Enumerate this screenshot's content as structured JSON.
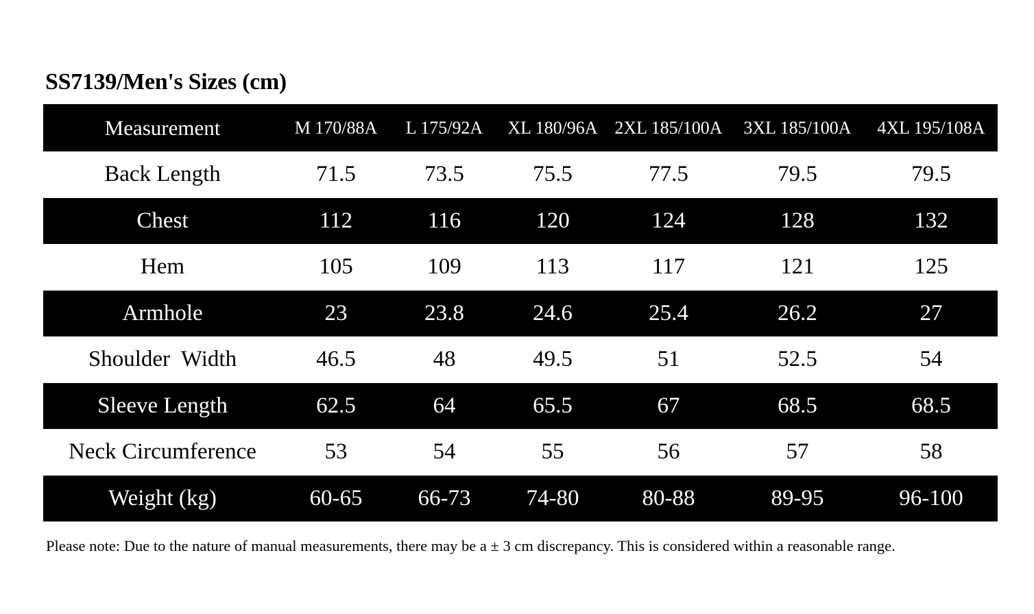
{
  "title": "SS7139/Men's Sizes (cm)",
  "table": {
    "headers": [
      "Measurement",
      "M 170/88A",
      "L 175/92A",
      "XL 180/96A",
      "2XL 185/100A",
      "3XL 185/100A",
      "4XL 195/108A"
    ],
    "rows": [
      {
        "label": "Back Length",
        "values": [
          "71.5",
          "73.5",
          "75.5",
          "77.5",
          "79.5",
          "79.5"
        ]
      },
      {
        "label": "Chest",
        "values": [
          "112",
          "116",
          "120",
          "124",
          "128",
          "132"
        ]
      },
      {
        "label": "Hem",
        "values": [
          "105",
          "109",
          "113",
          "117",
          "121",
          "125"
        ]
      },
      {
        "label": "Armhole",
        "values": [
          "23",
          "23.8",
          "24.6",
          "25.4",
          "26.2",
          "27"
        ]
      },
      {
        "label": "Shoulder  Width",
        "values": [
          "46.5",
          "48",
          "49.5",
          "51",
          "52.5",
          "54"
        ]
      },
      {
        "label": "Sleeve Length",
        "values": [
          "62.5",
          "64",
          "65.5",
          "67",
          "68.5",
          "68.5"
        ]
      },
      {
        "label": "Neck Circumference",
        "values": [
          "53",
          "54",
          "55",
          "56",
          "57",
          "58"
        ]
      },
      {
        "label": "Weight (kg)",
        "values": [
          "60-65",
          "66-73",
          "74-80",
          "80-88",
          "89-95",
          "96-100"
        ]
      }
    ]
  },
  "note": "Please note: Due to the nature of manual measurements, there may be a ± 3 cm discrepancy. This is considered within a reasonable range.",
  "colors": {
    "dark_row": "#000000",
    "light_row": "#ffffff",
    "dark_text": "#ffffff",
    "light_text": "#000000"
  }
}
